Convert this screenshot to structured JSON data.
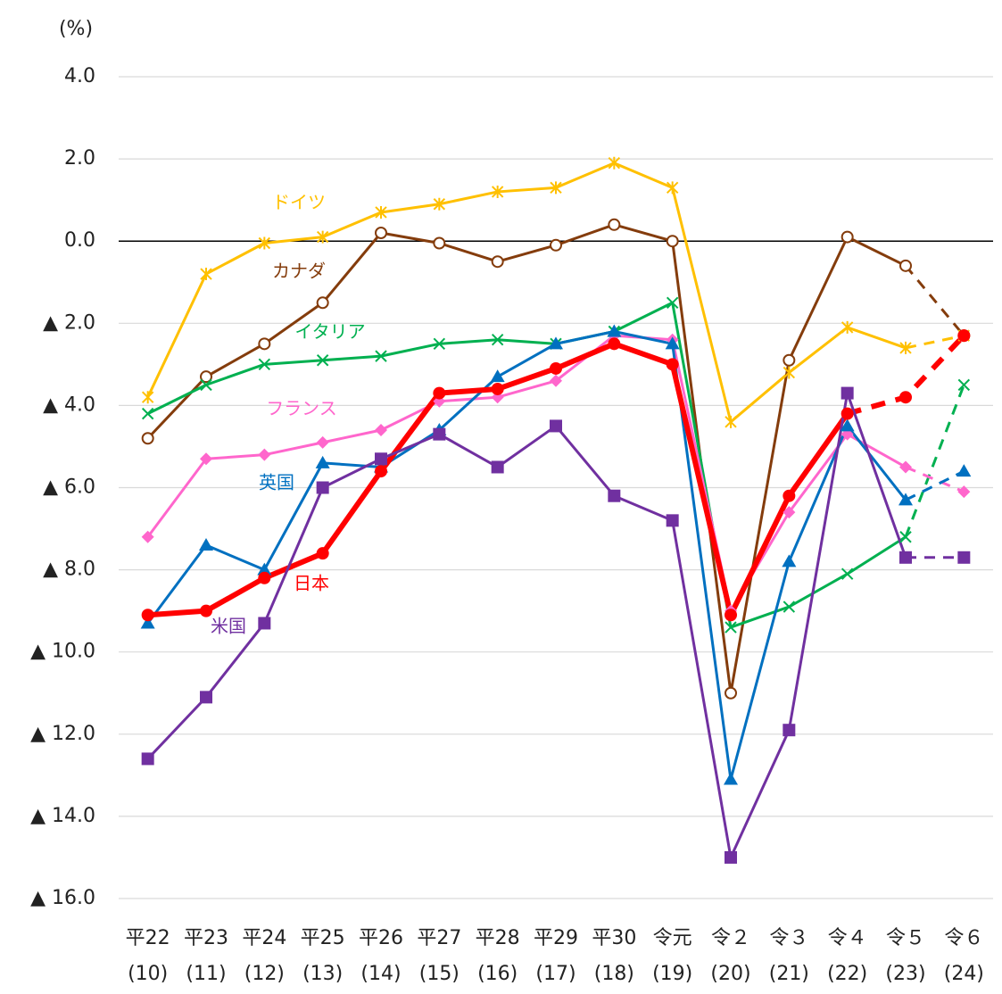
{
  "chart_data": {
    "type": "line",
    "y_label": "(%)",
    "categories": [
      [
        "平22",
        "(10)"
      ],
      [
        "平23",
        "(11)"
      ],
      [
        "平24",
        "(12)"
      ],
      [
        "平25",
        "(13)"
      ],
      [
        "平26",
        "(14)"
      ],
      [
        "平27",
        "(15)"
      ],
      [
        "平28",
        "(16)"
      ],
      [
        "平29",
        "(17)"
      ],
      [
        "平30",
        "(18)"
      ],
      [
        "令元",
        "(19)"
      ],
      [
        "令２",
        "(20)"
      ],
      [
        "令３",
        "(21)"
      ],
      [
        "令４",
        "(22)"
      ],
      [
        "令５",
        "(23)"
      ],
      [
        "令６",
        "(24)"
      ]
    ],
    "ylim": [
      -16,
      4
    ],
    "yticks": [
      {
        "value": 4,
        "label": "4.0"
      },
      {
        "value": 2,
        "label": "2.0"
      },
      {
        "value": 0,
        "label": "0.0"
      },
      {
        "value": -2,
        "label": "▲ 2.0"
      },
      {
        "value": -4,
        "label": "▲ 4.0"
      },
      {
        "value": -6,
        "label": "▲ 6.0"
      },
      {
        "value": -8,
        "label": "▲ 8.0"
      },
      {
        "value": -10,
        "label": "▲ 10.0"
      },
      {
        "value": -12,
        "label": "▲ 12.0"
      },
      {
        "value": -14,
        "label": "▲ 14.0"
      },
      {
        "value": -16,
        "label": "▲ 16.0"
      }
    ],
    "grid": true,
    "series": [
      {
        "name": "ドイツ",
        "color": "#FFC000",
        "marker": "star",
        "dashed_from": 13,
        "values": [
          -3.8,
          -0.8,
          -0.05,
          0.1,
          0.7,
          0.9,
          1.2,
          1.3,
          1.9,
          1.3,
          -4.4,
          -3.2,
          -2.1,
          -2.6,
          -2.3
        ]
      },
      {
        "name": "カナダ",
        "color": "#843C0C",
        "marker": "open-circle",
        "dashed_from": 13,
        "values": [
          -4.8,
          -3.3,
          -2.5,
          -1.5,
          0.2,
          -0.05,
          -0.5,
          -0.1,
          0.4,
          0.0,
          -11.0,
          -2.9,
          0.1,
          -0.6,
          -2.3
        ]
      },
      {
        "name": "イタリア",
        "color": "#00B050",
        "marker": "x",
        "dashed_from": 13,
        "values": [
          -4.2,
          -3.5,
          -3.0,
          -2.9,
          -2.8,
          -2.5,
          -2.4,
          -2.5,
          -2.2,
          -1.5,
          -9.4,
          -8.9,
          -8.1,
          -7.2,
          -3.5
        ]
      },
      {
        "name": "フランス",
        "color": "#FF66CC",
        "marker": "diamond",
        "dashed_from": 13,
        "values": [
          -7.2,
          -5.3,
          -5.2,
          -4.9,
          -4.6,
          -3.9,
          -3.8,
          -3.4,
          -2.3,
          -2.4,
          -9.0,
          -6.6,
          -4.7,
          -5.5,
          -6.1
        ]
      },
      {
        "name": "英国",
        "color": "#0070C0",
        "marker": "triangle",
        "dashed_from": 13,
        "values": [
          -9.3,
          -7.4,
          -8.0,
          -5.4,
          -5.5,
          -4.6,
          -3.3,
          -2.5,
          -2.2,
          -2.5,
          -13.1,
          -7.8,
          -4.5,
          -6.3,
          -5.6
        ]
      },
      {
        "name": "日本",
        "color": "#FF0000",
        "marker": "circle",
        "dashed_from": 12,
        "values": [
          -9.1,
          -9.0,
          -8.2,
          -7.6,
          -5.6,
          -3.7,
          -3.6,
          -3.1,
          -2.5,
          -3.0,
          -9.1,
          -6.2,
          -4.2,
          -3.8,
          -2.3
        ]
      },
      {
        "name": "米国",
        "color": "#7030A0",
        "marker": "square",
        "dashed_from": 13,
        "values": [
          -12.6,
          -11.1,
          -9.3,
          -6.0,
          -5.3,
          -4.7,
          -5.5,
          -4.5,
          -6.2,
          -6.8,
          -15.0,
          -11.9,
          -3.7,
          -7.7,
          -7.7
        ]
      }
    ]
  }
}
